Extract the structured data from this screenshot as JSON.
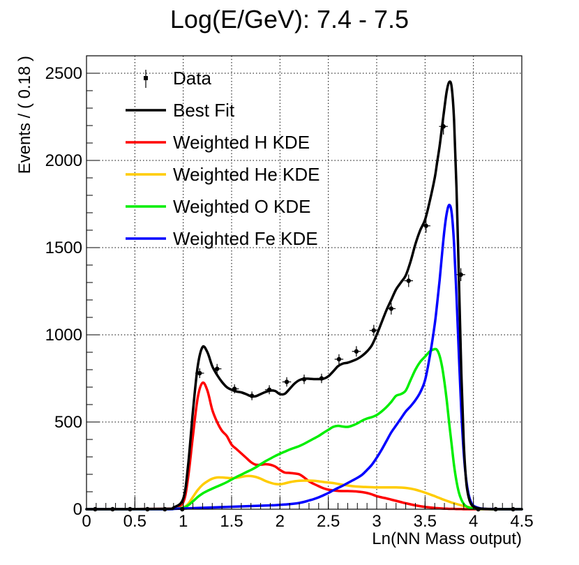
{
  "chart_data": {
    "type": "line",
    "title": "Log(E/GeV): 7.4 - 7.5",
    "xlabel": "Ln(NN Mass output)",
    "ylabel": "Events / ( 0.18 )",
    "xlim": [
      0,
      4.5
    ],
    "ylim": [
      0,
      2600
    ],
    "xticks": [
      0,
      0.5,
      1,
      1.5,
      2,
      2.5,
      3,
      3.5,
      4,
      4.5
    ],
    "xtick_labels": [
      "0",
      "0.5",
      "1",
      "1.5",
      "2",
      "2.5",
      "3",
      "3.5",
      "4",
      "4.5"
    ],
    "yticks": [
      0,
      500,
      1000,
      1500,
      2000,
      2500
    ],
    "ytick_labels": [
      "0",
      "500",
      "1000",
      "1500",
      "2000",
      "2500"
    ],
    "grid": true,
    "legend_position": "top-left",
    "colors": {
      "data": "#000000",
      "best_fit": "#000000",
      "h": "#ff0000",
      "he": "#ffcc00",
      "o": "#00ee00",
      "fe": "#0000ff"
    },
    "data_points": {
      "name": "Data",
      "x_halfwidth": 0.045,
      "x": [
        0.09,
        0.27,
        0.45,
        0.63,
        0.81,
        0.99,
        1.17,
        1.35,
        1.53,
        1.71,
        1.89,
        2.07,
        2.25,
        2.43,
        2.61,
        2.79,
        2.97,
        3.15,
        3.33,
        3.51,
        3.69,
        3.87,
        4.05,
        4.23,
        4.41
      ],
      "y": [
        0,
        0,
        0,
        0,
        0,
        0,
        780,
        805,
        690,
        650,
        685,
        730,
        745,
        750,
        860,
        905,
        1025,
        1150,
        1310,
        1625,
        2195,
        1345,
        0,
        0,
        0
      ],
      "err": [
        0,
        0,
        0,
        0,
        0,
        0,
        28,
        28,
        26,
        25,
        26,
        27,
        27,
        27,
        29,
        30,
        32,
        34,
        36,
        40,
        47,
        37,
        0,
        0,
        0
      ]
    },
    "x": [
      0.8,
      0.9,
      1.0,
      1.05,
      1.1,
      1.15,
      1.2,
      1.25,
      1.3,
      1.35,
      1.4,
      1.45,
      1.5,
      1.55,
      1.6,
      1.65,
      1.7,
      1.75,
      1.8,
      1.85,
      1.9,
      1.95,
      2.0,
      2.05,
      2.1,
      2.15,
      2.2,
      2.25,
      2.3,
      2.35,
      2.4,
      2.45,
      2.5,
      2.55,
      2.6,
      2.65,
      2.7,
      2.75,
      2.8,
      2.85,
      2.9,
      2.95,
      3.0,
      3.05,
      3.1,
      3.15,
      3.2,
      3.25,
      3.3,
      3.35,
      3.4,
      3.45,
      3.5,
      3.55,
      3.6,
      3.625,
      3.65,
      3.675,
      3.7,
      3.725,
      3.75,
      3.775,
      3.8,
      3.825,
      3.85,
      3.875,
      3.9,
      3.925,
      3.95,
      3.975,
      4.0,
      4.05,
      4.1,
      4.2,
      4.3,
      4.4,
      4.5
    ],
    "series": [
      {
        "name": "Best Fit",
        "color": "#000000",
        "values": [
          2,
          10,
          60,
          250,
          560,
          820,
          930,
          900,
          820,
          770,
          730,
          700,
          685,
          675,
          670,
          660,
          648,
          648,
          660,
          672,
          680,
          678,
          660,
          662,
          690,
          720,
          740,
          748,
          748,
          746,
          746,
          748,
          762,
          790,
          820,
          835,
          840,
          850,
          862,
          880,
          905,
          940,
          1000,
          1070,
          1140,
          1200,
          1260,
          1300,
          1340,
          1420,
          1520,
          1600,
          1660,
          1770,
          1900,
          1990,
          2080,
          2190,
          2300,
          2400,
          2450,
          2420,
          2230,
          1840,
          1320,
          780,
          380,
          160,
          70,
          30,
          15,
          5,
          2,
          0,
          0,
          0,
          0
        ]
      },
      {
        "name": "Weighted H KDE",
        "color": "#ff0000",
        "values": [
          2,
          8,
          40,
          180,
          420,
          640,
          725,
          680,
          570,
          500,
          450,
          420,
          370,
          345,
          320,
          295,
          270,
          255,
          255,
          258,
          255,
          245,
          225,
          210,
          208,
          205,
          200,
          182,
          160,
          145,
          132,
          120,
          112,
          108,
          105,
          104,
          104,
          103,
          101,
          98,
          93,
          85,
          75,
          68,
          62,
          55,
          48,
          41,
          34,
          28,
          22,
          17,
          13,
          10,
          7,
          6,
          5,
          4,
          3,
          3,
          2,
          2,
          2,
          1,
          1,
          1,
          0,
          0,
          0,
          0,
          0,
          0,
          0,
          0,
          0,
          0,
          0
        ]
      },
      {
        "name": "Weighted He KDE",
        "color": "#ffcc00",
        "values": [
          0,
          2,
          10,
          30,
          70,
          110,
          140,
          160,
          175,
          182,
          182,
          180,
          178,
          180,
          185,
          190,
          190,
          185,
          175,
          162,
          152,
          145,
          143,
          148,
          155,
          160,
          163,
          164,
          164,
          163,
          160,
          156,
          153,
          150,
          145,
          140,
          136,
          132,
          130,
          128,
          127,
          126,
          125,
          125,
          125,
          125,
          125,
          124,
          122,
          118,
          112,
          104,
          95,
          85,
          75,
          69,
          64,
          58,
          53,
          48,
          43,
          38,
          34,
          30,
          26,
          22,
          18,
          15,
          12,
          10,
          8,
          5,
          3,
          1,
          0,
          0,
          0
        ]
      },
      {
        "name": "Weighted O KDE",
        "color": "#00ee00",
        "values": [
          0,
          2,
          8,
          22,
          45,
          70,
          90,
          105,
          118,
          130,
          142,
          155,
          170,
          185,
          198,
          212,
          225,
          240,
          258,
          275,
          290,
          305,
          318,
          330,
          342,
          352,
          362,
          375,
          390,
          405,
          420,
          438,
          455,
          472,
          478,
          474,
          472,
          480,
          492,
          508,
          520,
          528,
          540,
          560,
          585,
          615,
          650,
          660,
          680,
          740,
          800,
          845,
          875,
          905,
          918,
          912,
          880,
          820,
          730,
          620,
          490,
          370,
          250,
          160,
          95,
          55,
          30,
          17,
          10,
          6,
          4,
          2,
          1,
          0,
          0,
          0,
          0
        ]
      },
      {
        "name": "Weighted Fe KDE",
        "color": "#0000ff",
        "values": [
          0,
          2,
          4,
          5,
          6,
          7,
          8,
          9,
          10,
          11,
          12,
          13,
          14,
          15,
          16,
          17,
          18,
          19,
          20,
          21,
          22,
          23,
          25,
          27,
          29,
          32,
          36,
          42,
          50,
          58,
          68,
          80,
          93,
          108,
          122,
          135,
          150,
          165,
          180,
          198,
          225,
          255,
          295,
          340,
          390,
          440,
          480,
          520,
          560,
          590,
          625,
          670,
          740,
          880,
          1060,
          1180,
          1310,
          1460,
          1600,
          1700,
          1745,
          1700,
          1520,
          1220,
          880,
          560,
          320,
          170,
          85,
          40,
          20,
          8,
          3,
          1,
          0,
          0,
          0
        ]
      }
    ],
    "legend": [
      {
        "label": "Data",
        "kind": "data",
        "color": "#000000"
      },
      {
        "label": "Best Fit",
        "kind": "line",
        "color": "#000000"
      },
      {
        "label": "Weighted H KDE",
        "kind": "line",
        "color": "#ff0000"
      },
      {
        "label": "Weighted He KDE",
        "kind": "line",
        "color": "#ffcc00"
      },
      {
        "label": "Weighted O KDE",
        "kind": "line",
        "color": "#00ee00"
      },
      {
        "label": "Weighted Fe KDE",
        "kind": "line",
        "color": "#0000ff"
      }
    ]
  }
}
